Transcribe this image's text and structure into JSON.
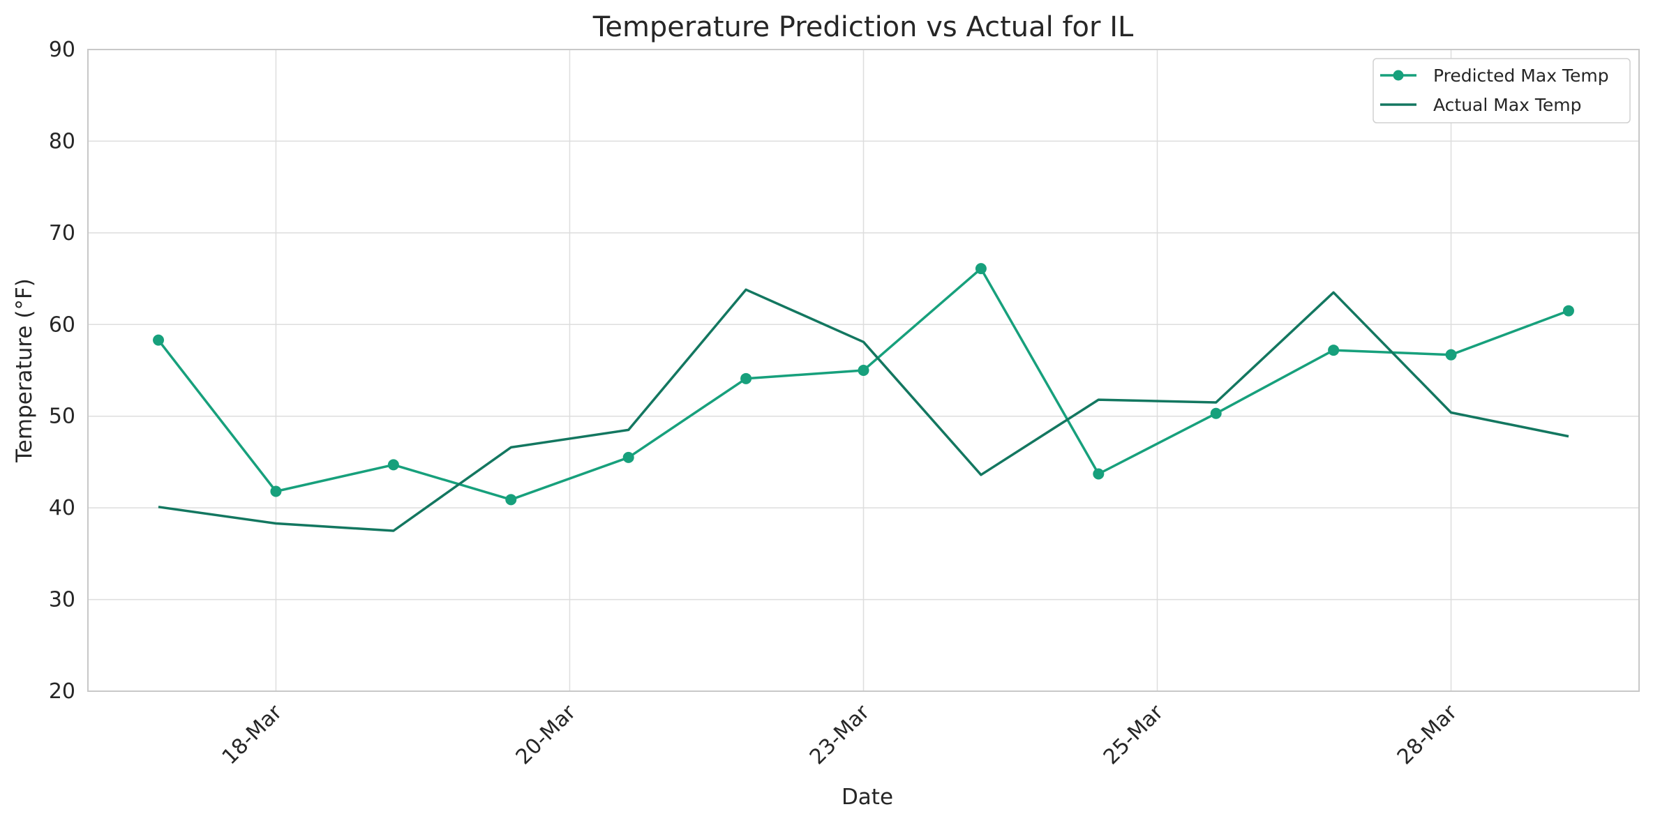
{
  "chart_data": {
    "type": "line",
    "title": "Temperature Prediction vs Actual for IL",
    "xlabel": "Date",
    "ylabel": "Temperature (°F)",
    "ylim": [
      20,
      90
    ],
    "yticks": [
      20,
      30,
      40,
      50,
      60,
      70,
      80,
      90
    ],
    "x": [
      0,
      1,
      2,
      3,
      4,
      5,
      6,
      7,
      8,
      9,
      10,
      11,
      12
    ],
    "xlim": [
      -0.6,
      12.6
    ],
    "xticks": [
      {
        "pos": 1,
        "label": "18-Mar"
      },
      {
        "pos": 3.5,
        "label": "20-Mar"
      },
      {
        "pos": 6,
        "label": "23-Mar"
      },
      {
        "pos": 8.5,
        "label": "25-Mar"
      },
      {
        "pos": 11,
        "label": "28-Mar"
      }
    ],
    "grid": true,
    "legend_position": "top-right",
    "series": [
      {
        "name": "Predicted Max Temp",
        "color": "#17a07c",
        "marker": "circle",
        "values": [
          58.3,
          41.8,
          44.7,
          40.9,
          45.5,
          54.1,
          55.0,
          66.1,
          43.7,
          50.3,
          57.2,
          56.7,
          61.5
        ]
      },
      {
        "name": "Actual Max Temp",
        "color": "#137760",
        "marker": "none",
        "values": [
          40.1,
          38.3,
          37.5,
          46.6,
          48.5,
          63.8,
          58.1,
          43.6,
          51.8,
          51.5,
          63.5,
          50.4,
          47.8
        ]
      }
    ]
  }
}
